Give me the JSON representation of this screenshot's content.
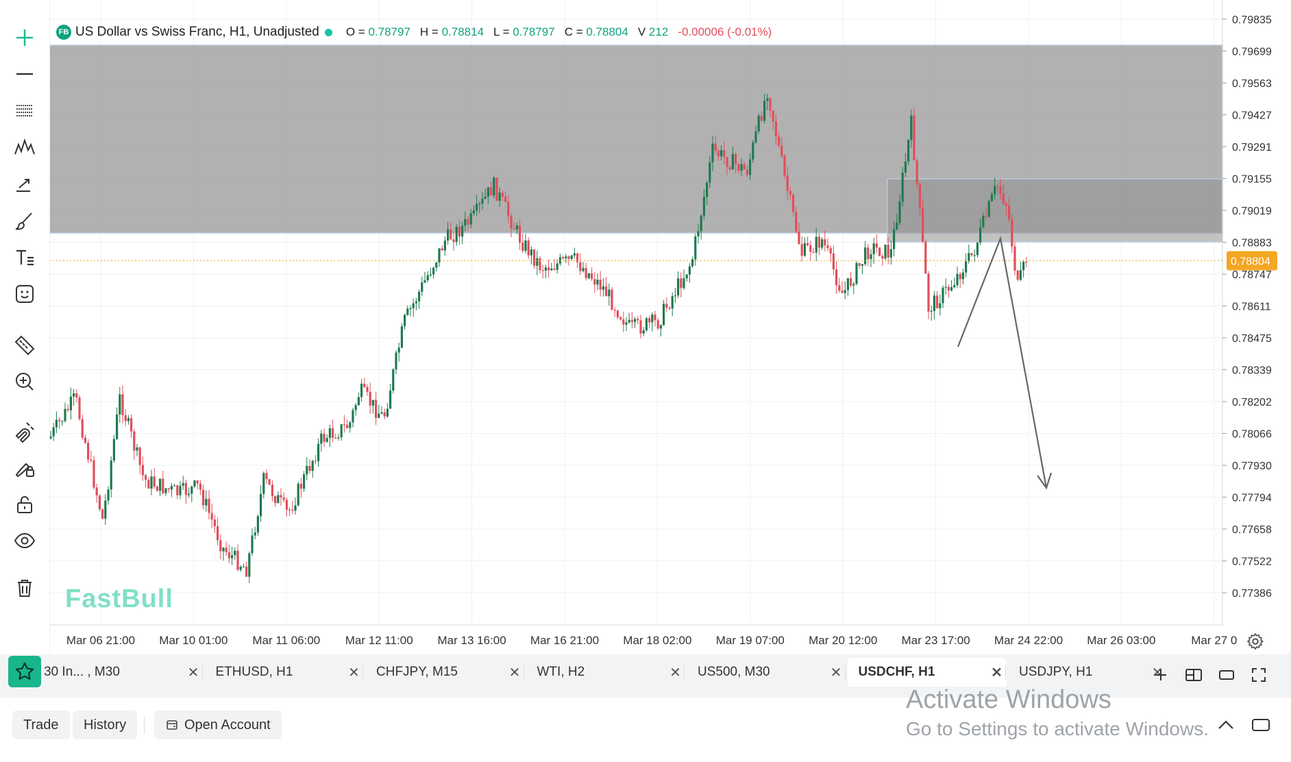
{
  "legend": {
    "badge": "FB",
    "title": "US Dollar vs Swiss Franc, H1, Unadjusted",
    "open_label": "O =",
    "open": "0.78797",
    "high_label": "H =",
    "high": "0.78814",
    "low_label": "L =",
    "low": "0.78797",
    "close_label": "C =",
    "close": "0.78804",
    "volume_label": "V",
    "volume": "212",
    "change": "-0.00006 (-0.01%)"
  },
  "price_axis": [
    "0.79835",
    "0.79699",
    "0.79563",
    "0.79427",
    "0.79291",
    "0.79155",
    "0.79019",
    "0.78883",
    "0.78747",
    "0.78611",
    "0.78475",
    "0.78339",
    "0.78202",
    "0.78066",
    "0.77930",
    "0.77794",
    "0.77658",
    "0.77522",
    "0.77386"
  ],
  "current_price": "0.78804",
  "time_axis": [
    "Mar 06 21:00",
    "Mar 10 01:00",
    "Mar 11 06:00",
    "Mar 12 11:00",
    "Mar 13 16:00",
    "Mar 16 21:00",
    "Mar 18 02:00",
    "Mar 19 07:00",
    "Mar 20 12:00",
    "Mar 23 17:00",
    "Mar 24 22:00",
    "Mar 26 03:00",
    "Mar 27 0"
  ],
  "watermark": "FastBull",
  "colors": {
    "up": "#1e7a4f",
    "down": "#e04e5a",
    "accent": "#19b58b",
    "last_price": "#f5a623",
    "zone": "#a3a3a3"
  },
  "tools": [
    "crosshair-icon",
    "horizontal-line-icon",
    "fib-lines-icon",
    "pattern-icon",
    "trend-arrow-icon",
    "brush-icon",
    "text-icon",
    "emoji-icon",
    "ruler-icon",
    "zoom-in-icon",
    "magnet-icon",
    "lock-drawing-icon",
    "unlock-icon",
    "eye-icon",
    "trash-icon"
  ],
  "tabs": [
    {
      "label": "30 In... , M30",
      "active": false
    },
    {
      "label": "ETHUSD, H1",
      "active": false
    },
    {
      "label": "CHFJPY, M15",
      "active": false
    },
    {
      "label": "WTI, H2",
      "active": false
    },
    {
      "label": "US500, M30",
      "active": false
    },
    {
      "label": "USDCHF, H1",
      "active": true
    },
    {
      "label": "USDJPY, H1",
      "active": false
    }
  ],
  "tab_close": "✕",
  "bottom": {
    "trade": "Trade",
    "history": "History",
    "open_account": "Open Account"
  },
  "windows_notice": {
    "title": "Activate Windows",
    "subtitle": "Go to Settings to activate Windows."
  }
}
